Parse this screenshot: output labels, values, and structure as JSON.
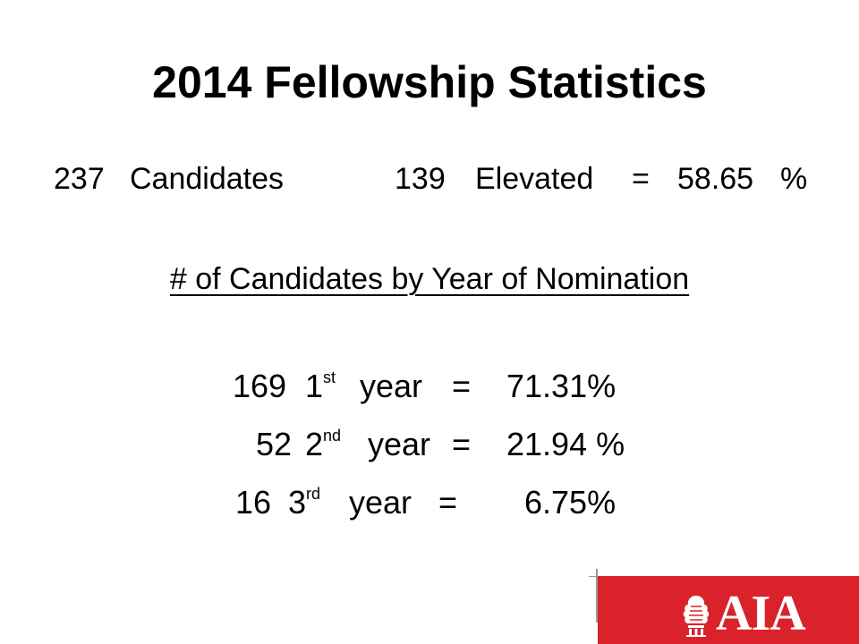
{
  "slide": {
    "title": "2014 Fellowship Statistics",
    "summary": {
      "candidates_count": "237",
      "candidates_label": "Candidates",
      "elevated_count": "139",
      "elevated_label": "Elevated",
      "equals": "=",
      "percent_value": "58.65",
      "percent_sign": "%"
    },
    "subtitle": "# of Candidates by Year of Nomination",
    "rows": [
      {
        "count": "169",
        "year_num": "1",
        "year_suffix": "st",
        "year_word": "year",
        "equals": "=",
        "percent": "71.31%"
      },
      {
        "count": "52",
        "year_num": "2",
        "year_suffix": "nd",
        "year_word": "year",
        "equals": "=",
        "percent": "21.94 %"
      },
      {
        "count": "16",
        "year_num": "3",
        "year_suffix": "rd",
        "year_word": "year",
        "equals": "=",
        "percent": "6.75%"
      }
    ]
  },
  "footer": {
    "logo_text": "AIA",
    "logo_icon": "aia-emblem-icon",
    "bar_color": "#d9222a"
  }
}
